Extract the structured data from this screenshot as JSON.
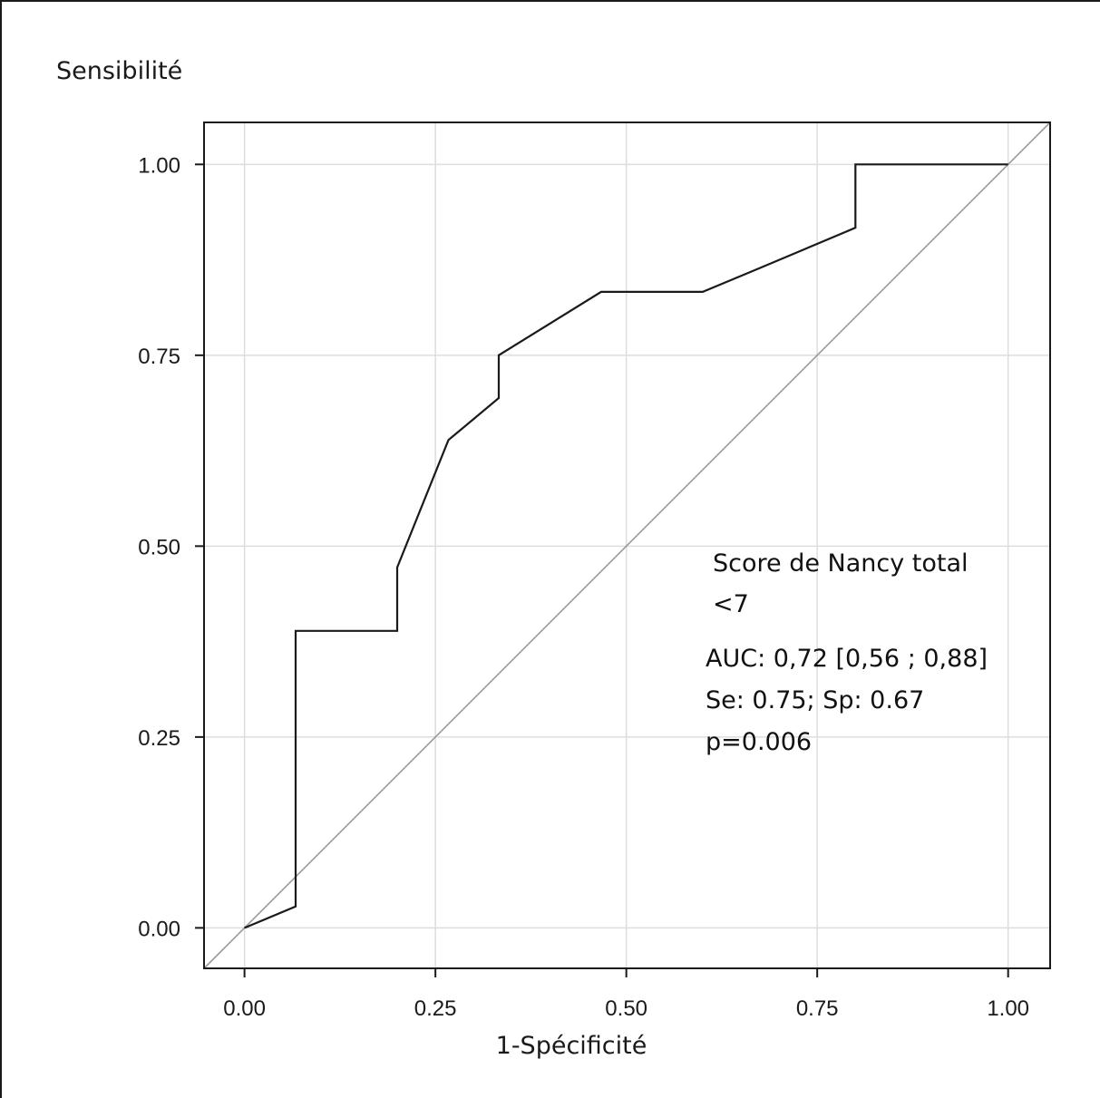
{
  "chart_data": {
    "type": "line",
    "ylabel": "Sensibilité",
    "xlabel": "1-Spécificité",
    "xlim": [
      -0.053,
      1.055
    ],
    "ylim": [
      -0.053,
      1.055
    ],
    "x_ticks": [
      {
        "value": 0,
        "label": "0.00"
      },
      {
        "value": 0.25,
        "label": "0.25"
      },
      {
        "value": 0.5,
        "label": "0.50"
      },
      {
        "value": 0.75,
        "label": "0.75"
      },
      {
        "value": 1,
        "label": "1.00"
      }
    ],
    "y_ticks": [
      {
        "value": 0,
        "label": "0.00"
      },
      {
        "value": 0.25,
        "label": "0.25"
      },
      {
        "value": 0.5,
        "label": "0.50"
      },
      {
        "value": 0.75,
        "label": "0.75"
      },
      {
        "value": 1,
        "label": "1.00"
      }
    ],
    "grid": true,
    "series": [
      {
        "color": "#1a1a1a",
        "x": [
          0,
          0.067,
          0.067,
          0.2,
          0.2,
          0.267,
          0.333,
          0.333,
          0.467,
          0.6,
          0.667,
          0.8,
          0.8,
          1.0
        ],
        "y": [
          0,
          0.028,
          0.389,
          0.389,
          0.472,
          0.639,
          0.694,
          0.75,
          0.833,
          0.833,
          0.861,
          0.917,
          1.0,
          1.0
        ]
      }
    ],
    "reference_line": {
      "x": [
        -0.053,
        1.055
      ],
      "y": [
        -0.053,
        1.055
      ],
      "color": "#9a9a9a"
    },
    "annotations": {
      "title_line1": "Score de Nancy total",
      "title_line2": "<7",
      "auc": "AUC: 0,72 [0,56 ; 0,88]",
      "se_sp": "Se: 0.75; Sp: 0.67",
      "p_value": "p=0.006"
    }
  }
}
